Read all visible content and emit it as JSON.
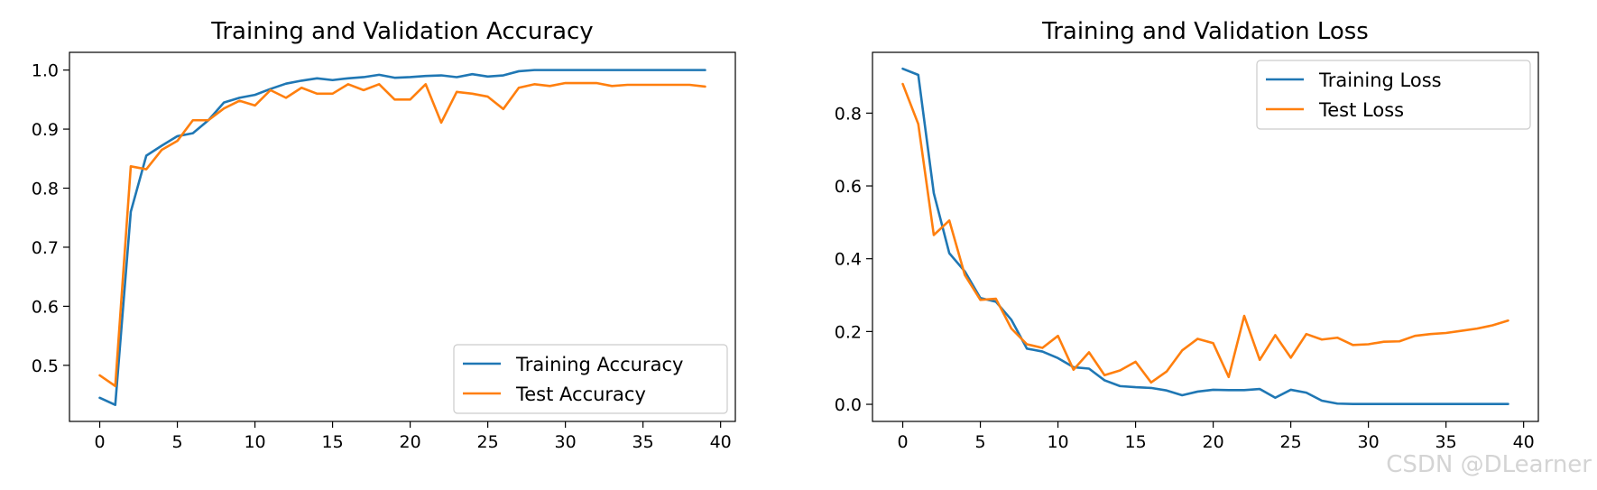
{
  "colors": {
    "training": "#1f77b4",
    "test": "#ff7f0e"
  },
  "chart_data": [
    {
      "type": "line",
      "title": "Training and Validation Accuracy",
      "xlabel": "",
      "ylabel": "",
      "xlim": [
        -1.95,
        40.95
      ],
      "ylim": [
        0.405,
        1.03
      ],
      "xticks": [
        0,
        5,
        10,
        15,
        20,
        25,
        30,
        35,
        40
      ],
      "yticks": [
        0.5,
        0.6,
        0.7,
        0.8,
        0.9,
        1.0
      ],
      "ytick_labels": [
        "0.5",
        "0.6",
        "0.7",
        "0.8",
        "0.9",
        "1.0"
      ],
      "legend_position": "lower right",
      "x": [
        0,
        1,
        2,
        3,
        4,
        5,
        6,
        7,
        8,
        9,
        10,
        11,
        12,
        13,
        14,
        15,
        16,
        17,
        18,
        19,
        20,
        21,
        22,
        23,
        24,
        25,
        26,
        27,
        28,
        29,
        30,
        31,
        32,
        33,
        34,
        35,
        36,
        37,
        38,
        39
      ],
      "series": [
        {
          "name": "Training Accuracy",
          "values": [
            0.445,
            0.433,
            0.76,
            0.855,
            0.872,
            0.888,
            0.893,
            0.915,
            0.945,
            0.953,
            0.958,
            0.968,
            0.977,
            0.982,
            0.986,
            0.983,
            0.986,
            0.988,
            0.992,
            0.987,
            0.988,
            0.99,
            0.991,
            0.988,
            0.993,
            0.989,
            0.991,
            0.998,
            1.0,
            1.0,
            1.0,
            1.0,
            1.0,
            1.0,
            1.0,
            1.0,
            1.0,
            1.0,
            1.0,
            1.0
          ]
        },
        {
          "name": "Test Accuracy",
          "values": [
            0.483,
            0.465,
            0.837,
            0.832,
            0.865,
            0.88,
            0.915,
            0.915,
            0.935,
            0.948,
            0.94,
            0.966,
            0.953,
            0.97,
            0.96,
            0.96,
            0.976,
            0.966,
            0.976,
            0.95,
            0.95,
            0.976,
            0.911,
            0.963,
            0.96,
            0.955,
            0.934,
            0.97,
            0.976,
            0.973,
            0.978,
            0.978,
            0.978,
            0.973,
            0.975,
            0.975,
            0.975,
            0.975,
            0.975,
            0.972
          ]
        }
      ]
    },
    {
      "type": "line",
      "title": "Training and Validation Loss",
      "xlabel": "",
      "ylabel": "",
      "xlim": [
        -1.95,
        40.95
      ],
      "ylim": [
        -0.047,
        0.967
      ],
      "xticks": [
        0,
        5,
        10,
        15,
        20,
        25,
        30,
        35,
        40
      ],
      "yticks": [
        0.0,
        0.2,
        0.4,
        0.6,
        0.8
      ],
      "ytick_labels": [
        "0.0",
        "0.2",
        "0.4",
        "0.6",
        "0.8"
      ],
      "legend_position": "upper right",
      "x": [
        0,
        1,
        2,
        3,
        4,
        5,
        6,
        7,
        8,
        9,
        10,
        11,
        12,
        13,
        14,
        15,
        16,
        17,
        18,
        19,
        20,
        21,
        22,
        23,
        24,
        25,
        26,
        27,
        28,
        29,
        30,
        31,
        32,
        33,
        34,
        35,
        36,
        37,
        38,
        39
      ],
      "series": [
        {
          "name": "Training Loss",
          "values": [
            0.922,
            0.905,
            0.58,
            0.415,
            0.365,
            0.292,
            0.282,
            0.232,
            0.153,
            0.145,
            0.127,
            0.102,
            0.098,
            0.066,
            0.05,
            0.047,
            0.045,
            0.038,
            0.025,
            0.035,
            0.04,
            0.039,
            0.039,
            0.042,
            0.018,
            0.04,
            0.032,
            0.01,
            0.002,
            0.001,
            0.001,
            0.001,
            0.001,
            0.001,
            0.001,
            0.001,
            0.001,
            0.001,
            0.001,
            0.001
          ]
        },
        {
          "name": "Test Loss",
          "values": [
            0.88,
            0.77,
            0.465,
            0.505,
            0.355,
            0.287,
            0.29,
            0.208,
            0.165,
            0.155,
            0.188,
            0.095,
            0.143,
            0.08,
            0.093,
            0.117,
            0.06,
            0.09,
            0.148,
            0.18,
            0.168,
            0.075,
            0.243,
            0.122,
            0.19,
            0.128,
            0.193,
            0.178,
            0.183,
            0.163,
            0.165,
            0.172,
            0.173,
            0.188,
            0.193,
            0.196,
            0.202,
            0.208,
            0.217,
            0.23
          ]
        }
      ]
    }
  ],
  "watermark": "CSDN @DLearner"
}
